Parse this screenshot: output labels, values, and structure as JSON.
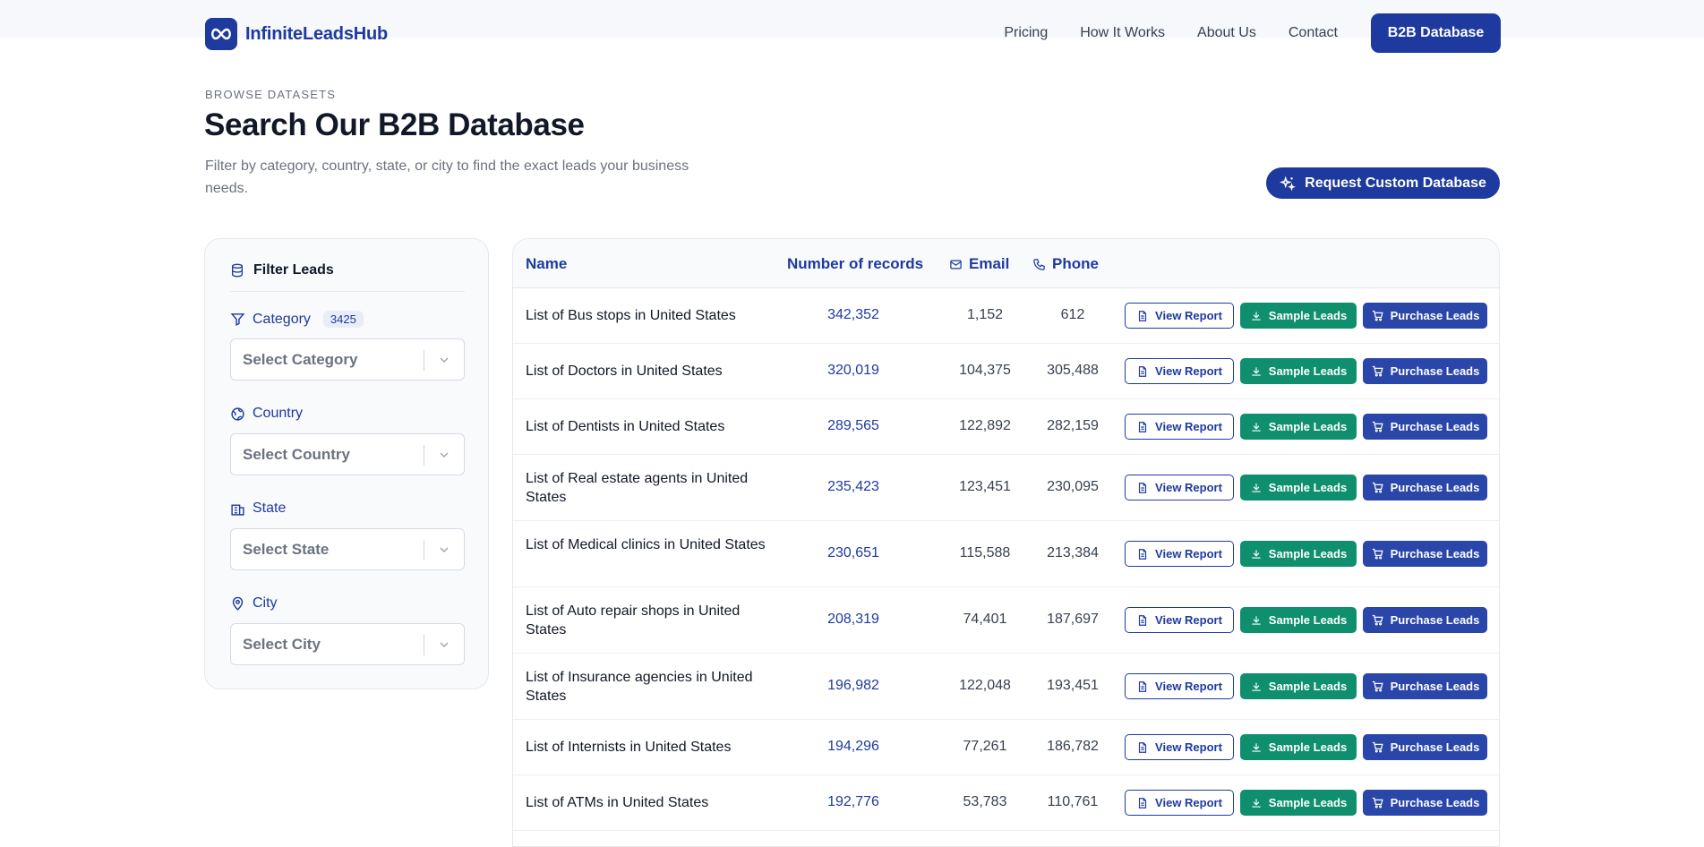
{
  "brand": {
    "name": "InfiniteLeadsHub"
  },
  "nav": {
    "links": [
      "Pricing",
      "How It Works",
      "About Us",
      "Contact"
    ],
    "cta": "B2B Database"
  },
  "hero": {
    "eyebrow": "BROWSE DATASETS",
    "title": "Search Our B2B Database",
    "subtitle": "Filter by category, country, state, or city to find the exact leads your business needs.",
    "custom_button": "Request Custom Database"
  },
  "filter": {
    "heading": "Filter Leads",
    "category": {
      "label": "Category",
      "count": "3425",
      "placeholder": "Select Category"
    },
    "country": {
      "label": "Country",
      "placeholder": "Select Country"
    },
    "state": {
      "label": "State",
      "placeholder": "Select State"
    },
    "city": {
      "label": "City",
      "placeholder": "Select City"
    }
  },
  "table": {
    "headers": {
      "name": "Name",
      "records": "Number of records",
      "email": "Email",
      "phone": "Phone"
    },
    "actions": {
      "report": "View Report",
      "sample": "Sample Leads",
      "purchase": "Purchase Leads"
    },
    "rows": [
      {
        "name": "List of Bus stops in United States",
        "records": "342,352",
        "email": "1,152",
        "phone": "612"
      },
      {
        "name": "List of Doctors in United States",
        "records": "320,019",
        "email": "104,375",
        "phone": "305,488"
      },
      {
        "name": "List of Dentists in United States",
        "records": "289,565",
        "email": "122,892",
        "phone": "282,159"
      },
      {
        "name": "List of Real estate agents in United States",
        "records": "235,423",
        "email": "123,451",
        "phone": "230,095"
      },
      {
        "name": "List of Medical clinics in United States",
        "records": "230,651",
        "email": "115,588",
        "phone": "213,384"
      },
      {
        "name": "List of Auto repair shops in United States",
        "records": "208,319",
        "email": "74,401",
        "phone": "187,697"
      },
      {
        "name": "List of Insurance agencies in United States",
        "records": "196,982",
        "email": "122,048",
        "phone": "193,451"
      },
      {
        "name": "List of Internists in United States",
        "records": "194,296",
        "email": "77,261",
        "phone": "186,782"
      },
      {
        "name": "List of ATMs in United States",
        "records": "192,776",
        "email": "53,783",
        "phone": "110,761"
      }
    ]
  },
  "colors": {
    "primary": "#1e3a9f",
    "sample": "#0f8f6e",
    "purchase": "#2a46a8"
  }
}
